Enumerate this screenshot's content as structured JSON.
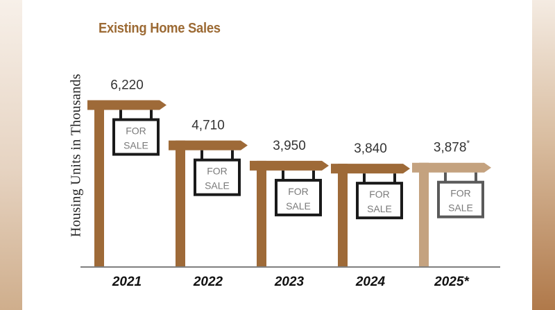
{
  "chart_data": {
    "type": "bar",
    "title": "Existing Home Sales",
    "ylabel": "Housing Units in Thousands",
    "xlabel": "",
    "categories": [
      "2021",
      "2022",
      "2023",
      "2024",
      "2025*"
    ],
    "values": [
      6220,
      4710,
      3950,
      3840,
      3878
    ],
    "value_labels": [
      "6,220",
      "4,710",
      "3,950",
      "3,840",
      "3,878"
    ],
    "value_label_suffix": [
      "",
      "",
      "",
      "",
      "*"
    ],
    "sign_text": [
      "FOR",
      "SALE"
    ],
    "colors": {
      "title": "#9c6a34",
      "post": "#9e6a38",
      "post_projected": "#c4a27f",
      "sign_border": "#1a1a1a",
      "sign_border_projected": "#5a5a5a",
      "sign_text": "#7a7a7a",
      "axis": "#555555"
    },
    "projected_index": 4,
    "grid": false,
    "legend": "none"
  }
}
